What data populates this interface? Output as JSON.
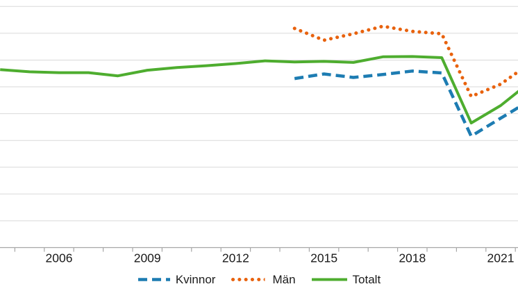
{
  "chart_data": {
    "type": "line",
    "x_years": [
      2004,
      2005,
      2006,
      2007,
      2008,
      2009,
      2010,
      2011,
      2012,
      2013,
      2014,
      2015,
      2016,
      2017,
      2018,
      2019,
      2020,
      2021,
      2022
    ],
    "x_tick_labels": [
      "2006",
      "2009",
      "2012",
      "2015",
      "2018",
      "2021"
    ],
    "x_tick_label_years": [
      2006,
      2009,
      2012,
      2015,
      2018,
      2021
    ],
    "ylim": [
      0,
      90
    ],
    "gridline_step": 10,
    "grid": "horizontal gridlines only",
    "legend_position": "bottom-center",
    "gridline_color": "#d9d9d9",
    "axis_color": "#a6a6a6",
    "tick_label_color": "#1a1a1a",
    "series": [
      {
        "key": "kvinnor",
        "name": "Kvinnor",
        "style": "dashed",
        "color": "#1d7cb2",
        "values": [
          null,
          null,
          null,
          null,
          null,
          null,
          null,
          null,
          null,
          null,
          63.1,
          64.8,
          63.5,
          64.6,
          65.9,
          65.2,
          41.6,
          48.3,
          54.9
        ]
      },
      {
        "key": "man",
        "name": "Män",
        "style": "dotted",
        "color": "#e8620e",
        "values": [
          null,
          null,
          null,
          null,
          null,
          null,
          null,
          null,
          null,
          null,
          81.8,
          77.4,
          79.8,
          82.6,
          80.7,
          79.8,
          56.4,
          61.0,
          68.8
        ]
      },
      {
        "key": "totalt",
        "name": "Totalt",
        "style": "solid",
        "color": "#4ead2f",
        "values": [
          66.4,
          65.6,
          65.3,
          65.3,
          64.1,
          66.2,
          67.2,
          67.9,
          68.7,
          69.7,
          69.3,
          69.5,
          69.1,
          71.2,
          71.3,
          70.9,
          46.5,
          53.0,
          61.8
        ]
      }
    ]
  }
}
